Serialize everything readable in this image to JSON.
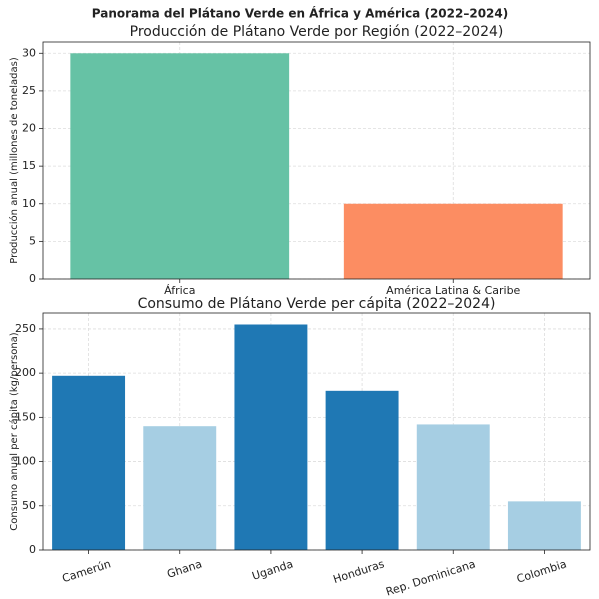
{
  "title": "Panorama del Plátano Verde en África y América (2022–2024)",
  "chart_data": [
    {
      "type": "bar",
      "title": "Producción de Plátano Verde por Región (2022–2024)",
      "ylabel": "Producción anual (millones de toneladas)",
      "categories": [
        "África",
        "América Latina & Caribe"
      ],
      "values": [
        30,
        10
      ],
      "colors": [
        "#66c2a5",
        "#fc8d62"
      ],
      "ylim": [
        0,
        31.5
      ],
      "yticks": [
        0,
        5,
        10,
        15,
        20,
        25,
        30
      ],
      "grid": true,
      "xrotation": 0
    },
    {
      "type": "bar",
      "title": "Consumo de Plátano Verde per cápita (2022–2024)",
      "ylabel": "Consumo anual per cápita (kg/persona)",
      "categories": [
        "Camerún",
        "Ghana",
        "Uganda",
        "Honduras",
        "Rep. Dominicana",
        "Colombia"
      ],
      "values": [
        197,
        140,
        255,
        180,
        142,
        55
      ],
      "colors": [
        "#1f78b4",
        "#a6cee3",
        "#1f78b4",
        "#1f78b4",
        "#a6cee3",
        "#a6cee3"
      ],
      "ylim": [
        0,
        268
      ],
      "yticks": [
        0,
        50,
        100,
        150,
        200,
        250
      ],
      "grid": true,
      "xrotation": -18
    }
  ]
}
